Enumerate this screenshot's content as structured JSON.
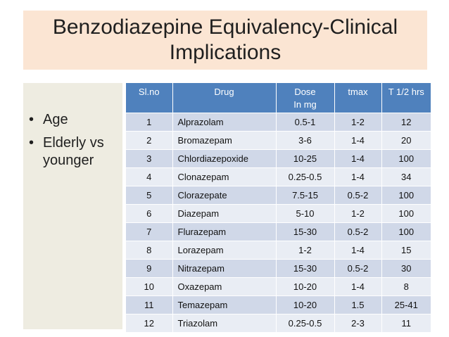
{
  "title": "Benzodiazepine Equivalency-Clinical Implications",
  "bullets": [
    "Age",
    "Elderly vs younger"
  ],
  "bullet_symbol": "•",
  "table": {
    "headers": {
      "slno": "Sl.no",
      "drug": "Drug",
      "dose_line1": "Dose",
      "dose_line2": "In mg",
      "tmax": "tmax",
      "thalf": "T 1/2 hrs"
    },
    "rows": [
      {
        "no": "1",
        "drug": "Alprazolam",
        "dose": "0.5-1",
        "tmax": "1-2",
        "thalf": "12"
      },
      {
        "no": "2",
        "drug": "Bromazepam",
        "dose": "3-6",
        "tmax": "1-4",
        "thalf": "20"
      },
      {
        "no": "3",
        "drug": "Chlordiazepoxide",
        "dose": "10-25",
        "tmax": "1-4",
        "thalf": "100"
      },
      {
        "no": "4",
        "drug": "Clonazepam",
        "dose": "0.25-0.5",
        "tmax": "1-4",
        "thalf": "34"
      },
      {
        "no": "5",
        "drug": "Clorazepate",
        "dose": "7.5-15",
        "tmax": "0.5-2",
        "thalf": "100"
      },
      {
        "no": "6",
        "drug": "Diazepam",
        "dose": "5-10",
        "tmax": "1-2",
        "thalf": "100"
      },
      {
        "no": "7",
        "drug": "Flurazepam",
        "dose": "15-30",
        "tmax": "0.5-2",
        "thalf": "100"
      },
      {
        "no": "8",
        "drug": "Lorazepam",
        "dose": "1-2",
        "tmax": "1-4",
        "thalf": "15"
      },
      {
        "no": "9",
        "drug": "Nitrazepam",
        "dose": "15-30",
        "tmax": "0.5-2",
        "thalf": "30"
      },
      {
        "no": "10",
        "drug": "Oxazepam",
        "dose": "10-20",
        "tmax": "1-4",
        "thalf": "8"
      },
      {
        "no": "11",
        "drug": "Temazepam",
        "dose": "10-20",
        "tmax": "1.5",
        "thalf": "25-41"
      },
      {
        "no": "12",
        "drug": "Triazolam",
        "dose": "0.25-0.5",
        "tmax": "2-3",
        "thalf": "11"
      }
    ]
  },
  "colors": {
    "title_bg": "#fbe5d3",
    "sidebar_bg": "#eeece1",
    "header_bg": "#4f81bd",
    "row_dark": "#d0d8e8",
    "row_light": "#e9edf4"
  }
}
